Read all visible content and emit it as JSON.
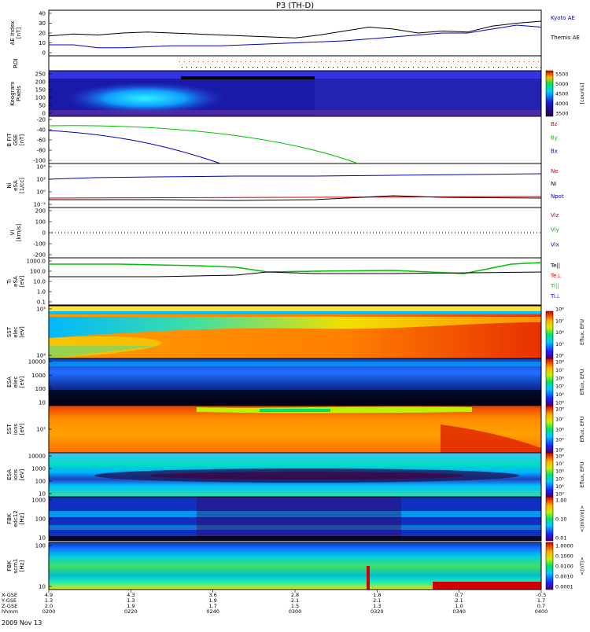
{
  "title": "P3 (TH-D)",
  "date_label": "2009 Nov 13",
  "colors": {
    "kyoto": "#0000c0",
    "themis": "#000000",
    "red": "#d00000",
    "green": "#00c000",
    "blue": "#0000c0",
    "black": "#000000"
  },
  "panels": [
    {
      "id": "ae",
      "ylabel": [
        "AE Index",
        "[nT]"
      ],
      "yticks": [
        "40",
        "30",
        "20",
        "10",
        "0"
      ],
      "legend": [
        {
          "text": "Kyoto AE",
          "color": "#0000c0"
        },
        {
          "text": "Themis AE",
          "color": "#000000"
        }
      ]
    },
    {
      "id": "roi",
      "ylabel": [
        "ROI"
      ],
      "yticks": [],
      "legend": []
    },
    {
      "id": "keogram",
      "ylabel": [
        "Keogram",
        "Pixels"
      ],
      "yticks": [
        "250",
        "200",
        "150",
        "100",
        "50",
        "0"
      ],
      "colorbar": {
        "ticks": [
          "5500",
          "5000",
          "4500",
          "4000",
          "3500"
        ],
        "unit": "[counts]"
      },
      "legend": []
    },
    {
      "id": "bfit",
      "ylabel": [
        "B FIT",
        "GSE",
        "[nT]"
      ],
      "yticks": [
        "-20",
        "-40",
        "-60",
        "-80",
        "-100"
      ],
      "legend": [
        {
          "text": "Bz",
          "color": "#d00000"
        },
        {
          "text": "By",
          "color": "#00c000"
        },
        {
          "text": "Bx",
          "color": "#0000c0"
        }
      ]
    },
    {
      "id": "ni",
      "ylabel": [
        "Ni",
        "eSA",
        "[1/cc]"
      ],
      "yticks": [
        "10⁴",
        "10²",
        "10⁰",
        "10⁻²"
      ],
      "legend": [
        {
          "text": "Ne",
          "color": "#d00000"
        },
        {
          "text": "Ni",
          "color": "#000000"
        },
        {
          "text": "Npot",
          "color": "#0000c0"
        }
      ]
    },
    {
      "id": "vi",
      "ylabel": [
        "Vi",
        "[km/s]"
      ],
      "yticks": [
        "200",
        "100",
        "0",
        "-100",
        "-200"
      ],
      "legend": [
        {
          "text": "Viz",
          "color": "#d00000"
        },
        {
          "text": "Viy",
          "color": "#00c000"
        },
        {
          "text": "Vix",
          "color": "#0000c0"
        }
      ]
    },
    {
      "id": "ti",
      "ylabel": [
        "Ti",
        "eSA",
        "[eV]"
      ],
      "yticks": [
        "1000.0",
        "100.0",
        "10.0",
        "1.0",
        "0.1"
      ],
      "legend": [
        {
          "text": "Te||",
          "color": "#000000"
        },
        {
          "text": "Te⊥",
          "color": "#d00000"
        },
        {
          "text": "Ti||",
          "color": "#00c000"
        },
        {
          "text": "Ti⊥",
          "color": "#0000c0"
        }
      ]
    },
    {
      "id": "sst_e",
      "ylabel": [
        "SST",
        "elec",
        "[eV]"
      ],
      "yticks": [
        "10⁵",
        "10⁴"
      ],
      "colorbar": {
        "ticks": [
          "10⁸",
          "10⁷",
          "10⁶",
          "10⁵",
          "10⁴"
        ],
        "unit": "Eflux, EFU"
      },
      "legend": []
    },
    {
      "id": "esa_e",
      "ylabel": [
        "ESA",
        "elec",
        "[eV]"
      ],
      "yticks": [
        "10000",
        "1000",
        "100",
        "10"
      ],
      "colorbar": {
        "ticks": [
          "10⁸",
          "10⁷",
          "10⁶",
          "10⁵",
          "10⁴",
          "10³"
        ],
        "unit": "Eflux, EFU"
      },
      "legend": []
    },
    {
      "id": "sst_i",
      "ylabel": [
        "SST",
        "ions",
        "[eV]"
      ],
      "yticks": [
        "10⁵"
      ],
      "colorbar": {
        "ticks": [
          "10⁸",
          "10⁷",
          "10⁶",
          "10⁵",
          "10⁴"
        ],
        "unit": "Eflux, EFU"
      },
      "legend": []
    },
    {
      "id": "esa_i",
      "ylabel": [
        "ESA",
        "ions",
        "[eV]"
      ],
      "yticks": [
        "10000",
        "1000",
        "100",
        "10"
      ],
      "colorbar": {
        "ticks": [
          "10⁸",
          "10⁷",
          "10⁶",
          "10⁵",
          "10⁴",
          "10³"
        ],
        "unit": "Eflux, EFU"
      },
      "legend": []
    },
    {
      "id": "fbk_e",
      "ylabel": [
        "FBK",
        "edc12",
        "[Hz]"
      ],
      "yticks": [
        "1000",
        "100",
        "10"
      ],
      "colorbar": {
        "ticks": [
          "1.00",
          "0.10",
          "0.01"
        ],
        "unit": "<|mV/m|>"
      },
      "legend": []
    },
    {
      "id": "fbk_b",
      "ylabel": [
        "FBK",
        "scm1",
        "[Hz]"
      ],
      "yticks": [
        "100",
        "10"
      ],
      "colorbar": {
        "ticks": [
          "1.0000",
          "0.1000",
          "0.0100",
          "0.0010",
          "0.0001"
        ],
        "unit": "<|nT|>"
      },
      "legend": []
    }
  ],
  "chart_data": {
    "type": "line",
    "title": "P3 (TH-D)",
    "x_ticks": [
      "0200",
      "0220",
      "0240",
      "0300",
      "0320",
      "0340",
      "0400"
    ],
    "x_rows": [
      {
        "label": "X-GSE",
        "values": [
          "4.9",
          "4.3",
          "3.6",
          "2.8",
          "1.8",
          "0.7",
          "-0.5"
        ]
      },
      {
        "label": "Y-GSE",
        "values": [
          "1.3",
          "1.3",
          "1.9",
          "2.1",
          "2.1",
          "2.1",
          "1.7"
        ]
      },
      {
        "label": "Z-GSE",
        "values": [
          "2.0",
          "1.9",
          "1.7",
          "1.5",
          "1.3",
          "1.0",
          "0.7"
        ]
      },
      {
        "label": "hhmm",
        "values": [
          "0200",
          "0220",
          "0240",
          "0300",
          "0320",
          "0340",
          "0400"
        ]
      }
    ],
    "series": [
      {
        "name": "Kyoto AE",
        "x": [
          0,
          0.05,
          0.1,
          0.15,
          0.2,
          0.25,
          0.3,
          0.35,
          0.4,
          0.45,
          0.5,
          0.55,
          0.6,
          0.65,
          0.7,
          0.75,
          0.8,
          0.85,
          0.9,
          0.95,
          1.0
        ],
        "y": [
          8,
          8,
          5,
          5,
          6,
          7,
          7,
          7,
          8,
          9,
          10,
          11,
          12,
          14,
          16,
          18,
          20,
          20,
          24,
          28,
          26
        ]
      },
      {
        "name": "Themis AE",
        "x": [
          0,
          0.05,
          0.1,
          0.15,
          0.2,
          0.25,
          0.3,
          0.35,
          0.4,
          0.45,
          0.5,
          0.55,
          0.6,
          0.65,
          0.7,
          0.75,
          0.8,
          0.85,
          0.9,
          0.95,
          1.0
        ],
        "y": [
          17,
          19,
          18,
          20,
          21,
          20,
          19,
          18,
          17,
          16,
          15,
          18,
          22,
          26,
          24,
          20,
          22,
          21,
          27,
          30,
          32
        ]
      }
    ]
  }
}
